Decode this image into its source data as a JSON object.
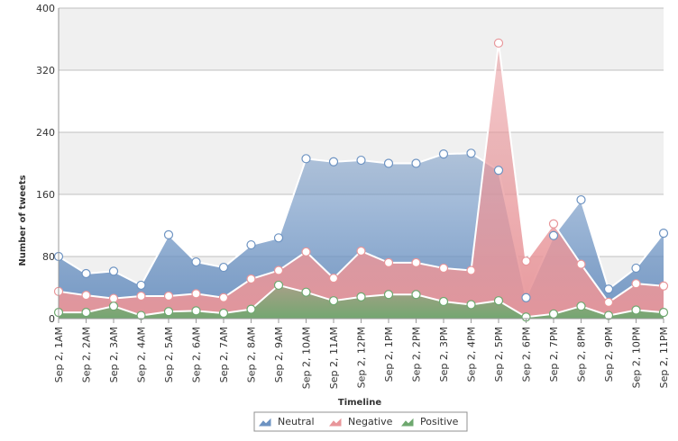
{
  "chart_data": {
    "type": "area",
    "title": "",
    "xlabel": "Timeline",
    "ylabel": "Number of tweets",
    "ylim": [
      0,
      400
    ],
    "yticks": [
      "0",
      "80",
      "160",
      "240",
      "320",
      "400"
    ],
    "categories": [
      "Sep 2, 1AM",
      "Sep 2, 2AM",
      "Sep 2, 3AM",
      "Sep 2, 4AM",
      "Sep 2, 5AM",
      "Sep 2, 6AM",
      "Sep 2, 7AM",
      "Sep 2, 8AM",
      "Sep 2, 9AM",
      "Sep 2, 10AM",
      "Sep 2, 11AM",
      "Sep 2, 12PM",
      "Sep 2, 1PM",
      "Sep 2, 2PM",
      "Sep 2, 3PM",
      "Sep 2, 4PM",
      "Sep 2, 5PM",
      "Sep 2, 6PM",
      "Sep 2, 7PM",
      "Sep 2, 8PM",
      "Sep 2, 9PM",
      "Sep 2, 10PM",
      "Sep 2, 11PM"
    ],
    "series": [
      {
        "name": "Neutral",
        "color": "#6d93c2",
        "values": [
          80,
          58,
          61,
          43,
          108,
          73,
          66,
          95,
          104,
          206,
          202,
          204,
          200,
          200,
          212,
          213,
          191,
          27,
          107,
          153,
          38,
          65,
          110
        ]
      },
      {
        "name": "Negative",
        "color": "#e8969a",
        "values": [
          35,
          30,
          26,
          29,
          29,
          32,
          27,
          51,
          62,
          86,
          52,
          87,
          72,
          72,
          65,
          62,
          355,
          74,
          122,
          70,
          21,
          45,
          42
        ]
      },
      {
        "name": "Positive",
        "color": "#6ea86f",
        "values": [
          8,
          8,
          16,
          4,
          9,
          10,
          7,
          12,
          43,
          34,
          23,
          28,
          31,
          31,
          22,
          18,
          23,
          2,
          6,
          16,
          4,
          11,
          8
        ]
      }
    ],
    "grid": true,
    "legend_position": "bottom-center"
  }
}
